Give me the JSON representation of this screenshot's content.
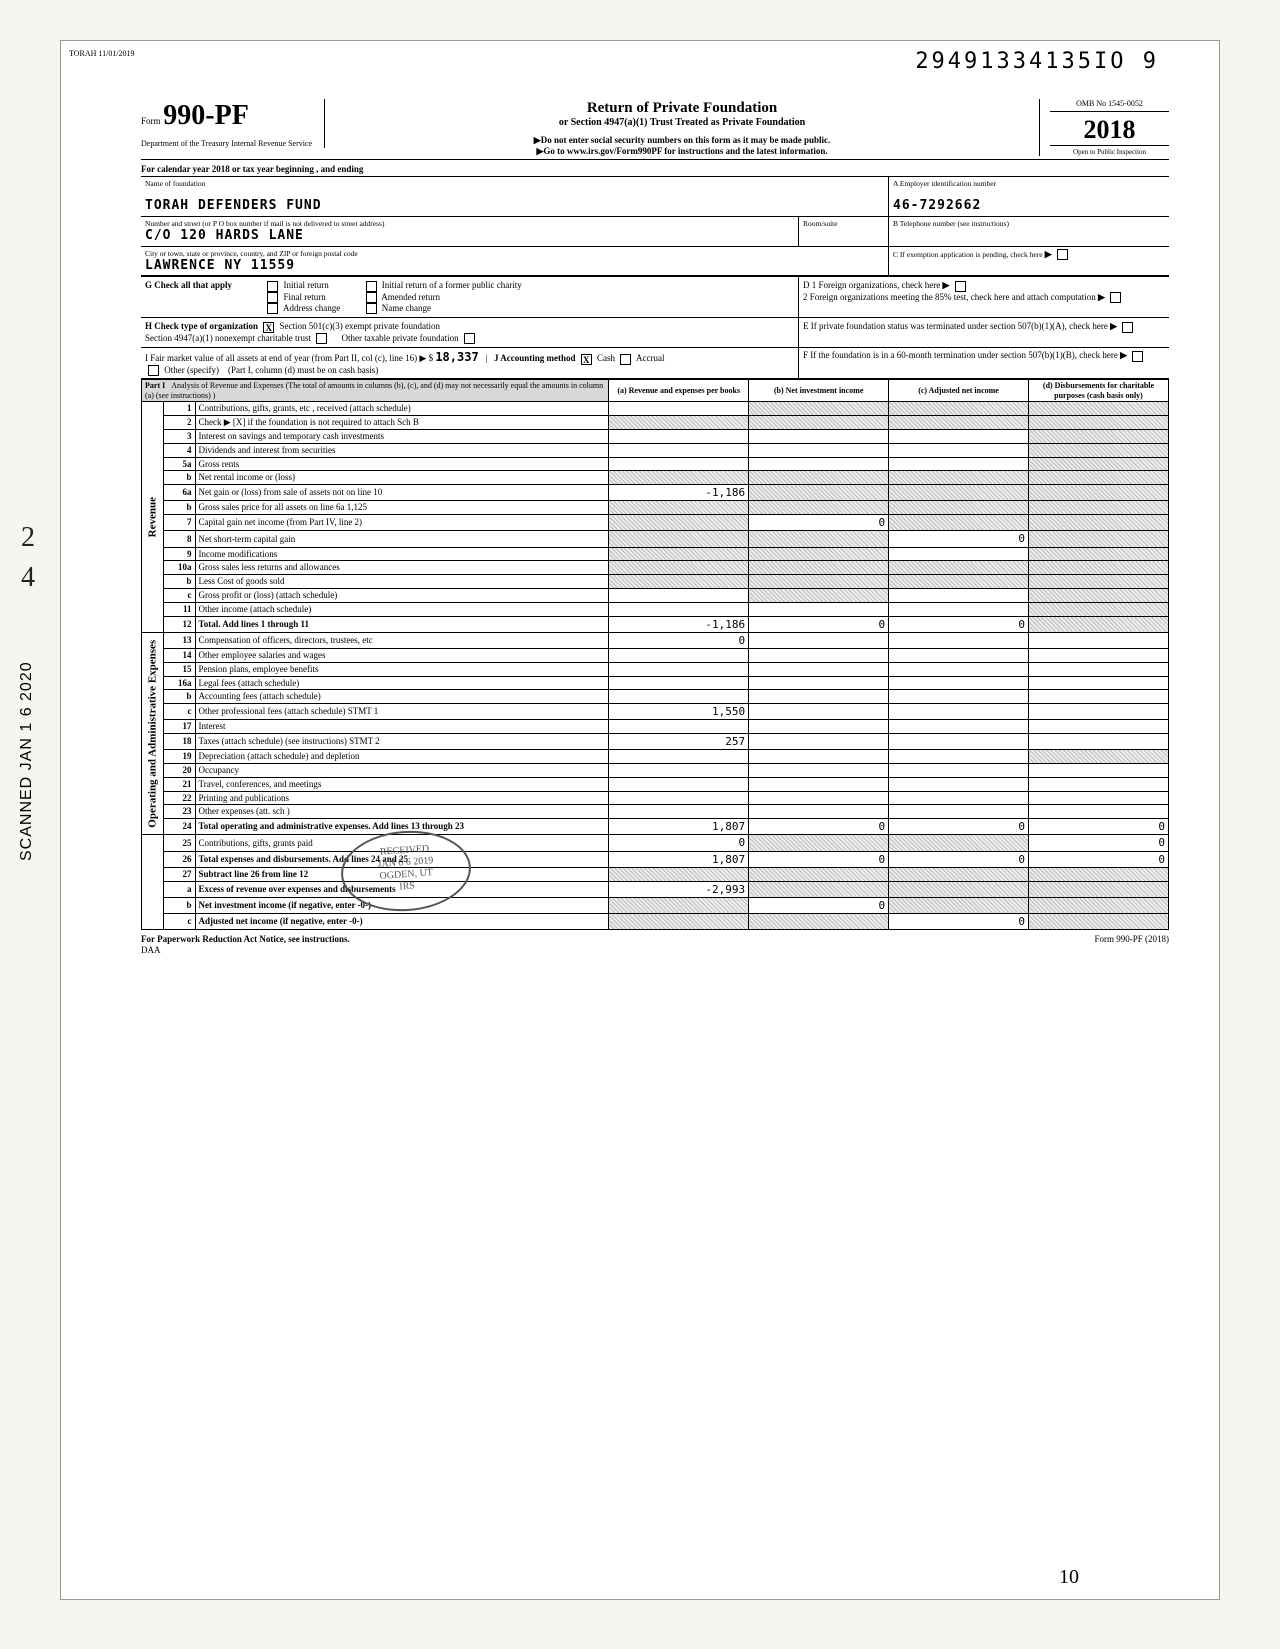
{
  "stamps": {
    "top_left": "TORAH 11/01/2019",
    "document_locator": "29491334135IO 9",
    "scanned_side": "SCANNED JAN 1 6 2020",
    "received_line1": "RECEIVED",
    "received_line2": "JAN 0 6 2019",
    "received_line3": "OGDEN, UT",
    "received_line4": "IRS",
    "margin_scribble_1": "2",
    "margin_scribble_2": "4",
    "bottom_scribble": "10"
  },
  "header": {
    "form_prefix": "Form",
    "form_number": "990-PF",
    "dept": "Department of the Treasury\nInternal Revenue Service",
    "title": "Return of Private Foundation",
    "subtitle": "or Section 4947(a)(1) Trust Treated as Private Foundation",
    "note1": "▶Do not enter social security numbers on this form as it may be made public.",
    "note2": "▶Go to  www.irs.gov/Form990PF for instructions and the latest information.",
    "omb": "OMB No 1545-0052",
    "year": "2018",
    "open": "Open to Public Inspection"
  },
  "cal_year": "For calendar year 2018 or tax year beginning                                  , and ending",
  "id": {
    "name_label": "Name of foundation",
    "name": "TORAH  DEFENDERS  FUND",
    "addr_label": "Number and street (or P O  box number if mail is not delivered to street address)",
    "addr": "C/O  120  HARDS LANE",
    "room_label": "Room/suite",
    "city_label": "City or town, state or province, country, and ZIP or foreign postal code",
    "city": "LAWRENCE                           NY   11559",
    "A_label": "A    Employer identification number",
    "A_val": "46-7292662",
    "B_label": "B    Telephone number (see instructions)",
    "C_label": "C    If exemption application is pending, check here"
  },
  "G": {
    "lead": "G  Check all that apply",
    "opts": [
      "Initial return",
      "Final return",
      "Address change",
      "Initial return of a former public charity",
      "Amended return",
      "Name change"
    ]
  },
  "D": {
    "d1": "D   1   Foreign organizations, check here",
    "d2": "2   Foreign organizations meeting the 85% test, check here and attach computation"
  },
  "H": {
    "lead": "H  Check type of organization",
    "o1": "Section 501(c)(3) exempt private foundation",
    "o2": "Section 4947(a)(1) nonexempt charitable trust",
    "o3": "Other taxable private foundation",
    "checked": "X"
  },
  "E": "E    If private foundation status was terminated under section 507(b)(1)(A), check here",
  "I": {
    "lead": "I   Fair market value of all assets at end of year (from Part II, col (c), line 16) ▶  $",
    "val": "18,337",
    "J": "J   Accounting method",
    "Jnote": "(Part I, column (d) must be on cash basis)",
    "cash": "Cash",
    "accrual": "Accrual",
    "other": "Other (specify)",
    "checked": "X"
  },
  "F": "F    If the foundation is in a 60-month termination under section 507(b)(1)(B), check here",
  "part1": {
    "label": "Part I",
    "title": "Analysis of Revenue and Expenses (The total of amounts in columns (b), (c), and (d) may not necessarily equal the amounts in column (a) (see instructions) )",
    "cols": {
      "a": "(a) Revenue and expenses per books",
      "b": "(b) Net investment income",
      "c": "(c) Adjusted net income",
      "d": "(d) Disbursements for charitable purposes (cash basis only)"
    }
  },
  "section_labels": {
    "revenue": "Revenue",
    "opex": "Operating and Administrative Expenses"
  },
  "rows": [
    {
      "n": "1",
      "d": "Contributions, gifts, grants, etc , received (attach schedule)",
      "s": {
        "b": 1,
        "c": 1,
        "d": 1
      }
    },
    {
      "n": "2",
      "d": "Check ▶  [X]   if the foundation is not required to attach Sch  B",
      "s": {
        "a": 1,
        "b": 1,
        "c": 1,
        "d": 1
      }
    },
    {
      "n": "3",
      "d": "Interest on savings and temporary cash investments",
      "s": {
        "d": 1
      }
    },
    {
      "n": "4",
      "d": "Dividends and interest from securities",
      "s": {
        "d": 1
      }
    },
    {
      "n": "5a",
      "d": "Gross rents",
      "s": {
        "d": 1
      }
    },
    {
      "n": "b",
      "d": "Net rental income or (loss)",
      "s": {
        "a": 1,
        "b": 1,
        "c": 1,
        "d": 1
      }
    },
    {
      "n": "6a",
      "d": "Net gain or (loss) from sale of assets not on line 10",
      "a": "-1,186",
      "s": {
        "b": 1,
        "c": 1,
        "d": 1
      }
    },
    {
      "n": "b",
      "d": "Gross sales price for all assets on line 6a                           1,125",
      "s": {
        "a": 1,
        "b": 1,
        "c": 1,
        "d": 1
      }
    },
    {
      "n": "7",
      "d": "Capital gain net income (from Part IV, line 2)",
      "b": "0",
      "s": {
        "a": 1,
        "c": 1,
        "d": 1
      }
    },
    {
      "n": "8",
      "d": "Net short-term capital gain",
      "c": "0",
      "s": {
        "a": 1,
        "b": 1,
        "d": 1
      }
    },
    {
      "n": "9",
      "d": "Income modifications",
      "s": {
        "a": 1,
        "b": 1,
        "d": 1
      }
    },
    {
      "n": "10a",
      "d": "Gross sales less returns and allowances",
      "s": {
        "a": 1,
        "b": 1,
        "c": 1,
        "d": 1
      }
    },
    {
      "n": "b",
      "d": "Less Cost of goods sold",
      "s": {
        "a": 1,
        "b": 1,
        "c": 1,
        "d": 1
      }
    },
    {
      "n": "c",
      "d": "Gross profit or (loss) (attach schedule)",
      "s": {
        "b": 1,
        "d": 1
      }
    },
    {
      "n": "11",
      "d": "Other income (attach schedule)",
      "s": {
        "d": 1
      }
    },
    {
      "n": "12",
      "d": "Total. Add lines 1 through 11",
      "bold": true,
      "a": "-1,186",
      "b": "0",
      "c": "0",
      "s": {
        "d": 1
      }
    },
    {
      "n": "13",
      "d": "Compensation of officers, directors, trustees, etc",
      "a": "0"
    },
    {
      "n": "14",
      "d": "Other employee salaries and wages"
    },
    {
      "n": "15",
      "d": "Pension plans, employee benefits"
    },
    {
      "n": "16a",
      "d": "Legal fees (attach schedule)"
    },
    {
      "n": "b",
      "d": "Accounting fees (attach schedule)"
    },
    {
      "n": "c",
      "d": "Other professional fees (attach schedule)         STMT  1",
      "a": "1,550"
    },
    {
      "n": "17",
      "d": "Interest"
    },
    {
      "n": "18",
      "d": "Taxes (attach schedule) (see instructions)          STMT  2",
      "a": "257"
    },
    {
      "n": "19",
      "d": "Depreciation (attach schedule) and depletion",
      "s": {
        "d": 1
      }
    },
    {
      "n": "20",
      "d": "Occupancy"
    },
    {
      "n": "21",
      "d": "Travel, conferences, and meetings"
    },
    {
      "n": "22",
      "d": "Printing and publications"
    },
    {
      "n": "23",
      "d": "Other expenses (att. sch )"
    },
    {
      "n": "24",
      "d": "Total operating and administrative expenses. Add lines 13 through 23",
      "bold": true,
      "a": "1,807",
      "b": "0",
      "c": "0",
      "dV": "0"
    },
    {
      "n": "25",
      "d": "Contributions, gifts, grants paid",
      "a": "0",
      "dV": "0",
      "s": {
        "b": 1,
        "c": 1
      }
    },
    {
      "n": "26",
      "d": "Total expenses and disbursements. Add lines 24 and 25",
      "bold": true,
      "a": "1,807",
      "b": "0",
      "c": "0",
      "dV": "0"
    },
    {
      "n": "27",
      "d": "Subtract line 26 from line 12",
      "bold": true,
      "s": {
        "a": 1,
        "b": 1,
        "c": 1,
        "d": 1
      }
    },
    {
      "n": "a",
      "d": "Excess of revenue over expenses and disbursements",
      "bold": true,
      "a": "-2,993",
      "s": {
        "b": 1,
        "c": 1,
        "d": 1
      }
    },
    {
      "n": "b",
      "d": "Net investment income (if negative, enter -0-)",
      "bold": true,
      "b": "0",
      "s": {
        "a": 1,
        "c": 1,
        "d": 1
      }
    },
    {
      "n": "c",
      "d": "Adjusted net income (if negative, enter -0-)",
      "bold": true,
      "c": "0",
      "s": {
        "a": 1,
        "b": 1,
        "d": 1
      }
    }
  ],
  "revenue_rowspan": 16,
  "opex_rowspan": 14,
  "footer": {
    "left": "For Paperwork Reduction Act Notice, see instructions.",
    "mid": "DAA",
    "right": "Form 990-PF (2018)"
  },
  "colors": {
    "shade": "#d8d8d8",
    "hatch_a": "#bbb",
    "hatch_b": "#eee",
    "page_bg": "#f5f5f2"
  }
}
